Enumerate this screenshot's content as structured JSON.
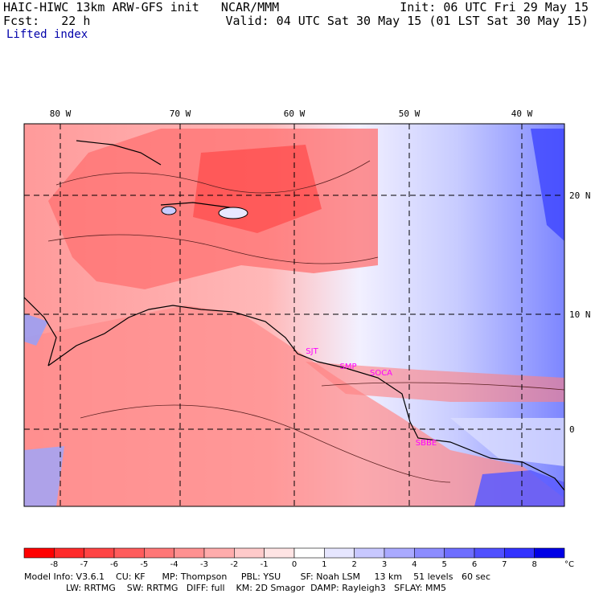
{
  "header": {
    "model_line": "HAIC-HIWC 13km ARW-GFS init   NCAR/MMM",
    "init": "Init: 06 UTC Fri 29 May 15",
    "fcst": "Fcst:   22 h",
    "valid": "Valid: 04 UTC Sat 30 May 15 (01 LST Sat 30 May 15)",
    "field": "Lifted index"
  },
  "map": {
    "lon_labels": [
      "80 W",
      "70 W",
      "60 W",
      "50 W",
      "40 W"
    ],
    "lat_labels": [
      "20 N",
      "10 N",
      "0"
    ],
    "stations": [
      "SJT",
      "SMP",
      "SOCA",
      "SBBE"
    ],
    "colors": {
      "station": "#ff00ff",
      "warm": "#ff4a4a",
      "cool": "#6f7fff",
      "coast": "#000000"
    }
  },
  "colorbar": {
    "labels": [
      "-8",
      "-7",
      "-6",
      "-5",
      "-4",
      "-3",
      "-2",
      "-1",
      "0",
      "1",
      "2",
      "3",
      "4",
      "5",
      "6",
      "7",
      "8"
    ],
    "unit": "°C",
    "colors": [
      "#ff0000",
      "#ff2a2a",
      "#ff4444",
      "#ff5c5c",
      "#ff7777",
      "#ff9191",
      "#ffacac",
      "#ffcaca",
      "#ffe4e4",
      "#ffffff",
      "#e6e6ff",
      "#c8c8ff",
      "#aaaaff",
      "#8c8cff",
      "#6e6eff",
      "#5050ff",
      "#3232ff",
      "#0000e6"
    ]
  },
  "footer": {
    "line1": "Model Info: V3.6.1    CU: KF      MP: Thompson     PBL: YSU       SF: Noah LSM     13 km    51 levels   60 sec",
    "line2": "LW: RRTMG    SW: RRTMG   DIFF: full    KM: 2D Smagor  DAMP: Rayleigh3   SFLAY: MM5"
  }
}
